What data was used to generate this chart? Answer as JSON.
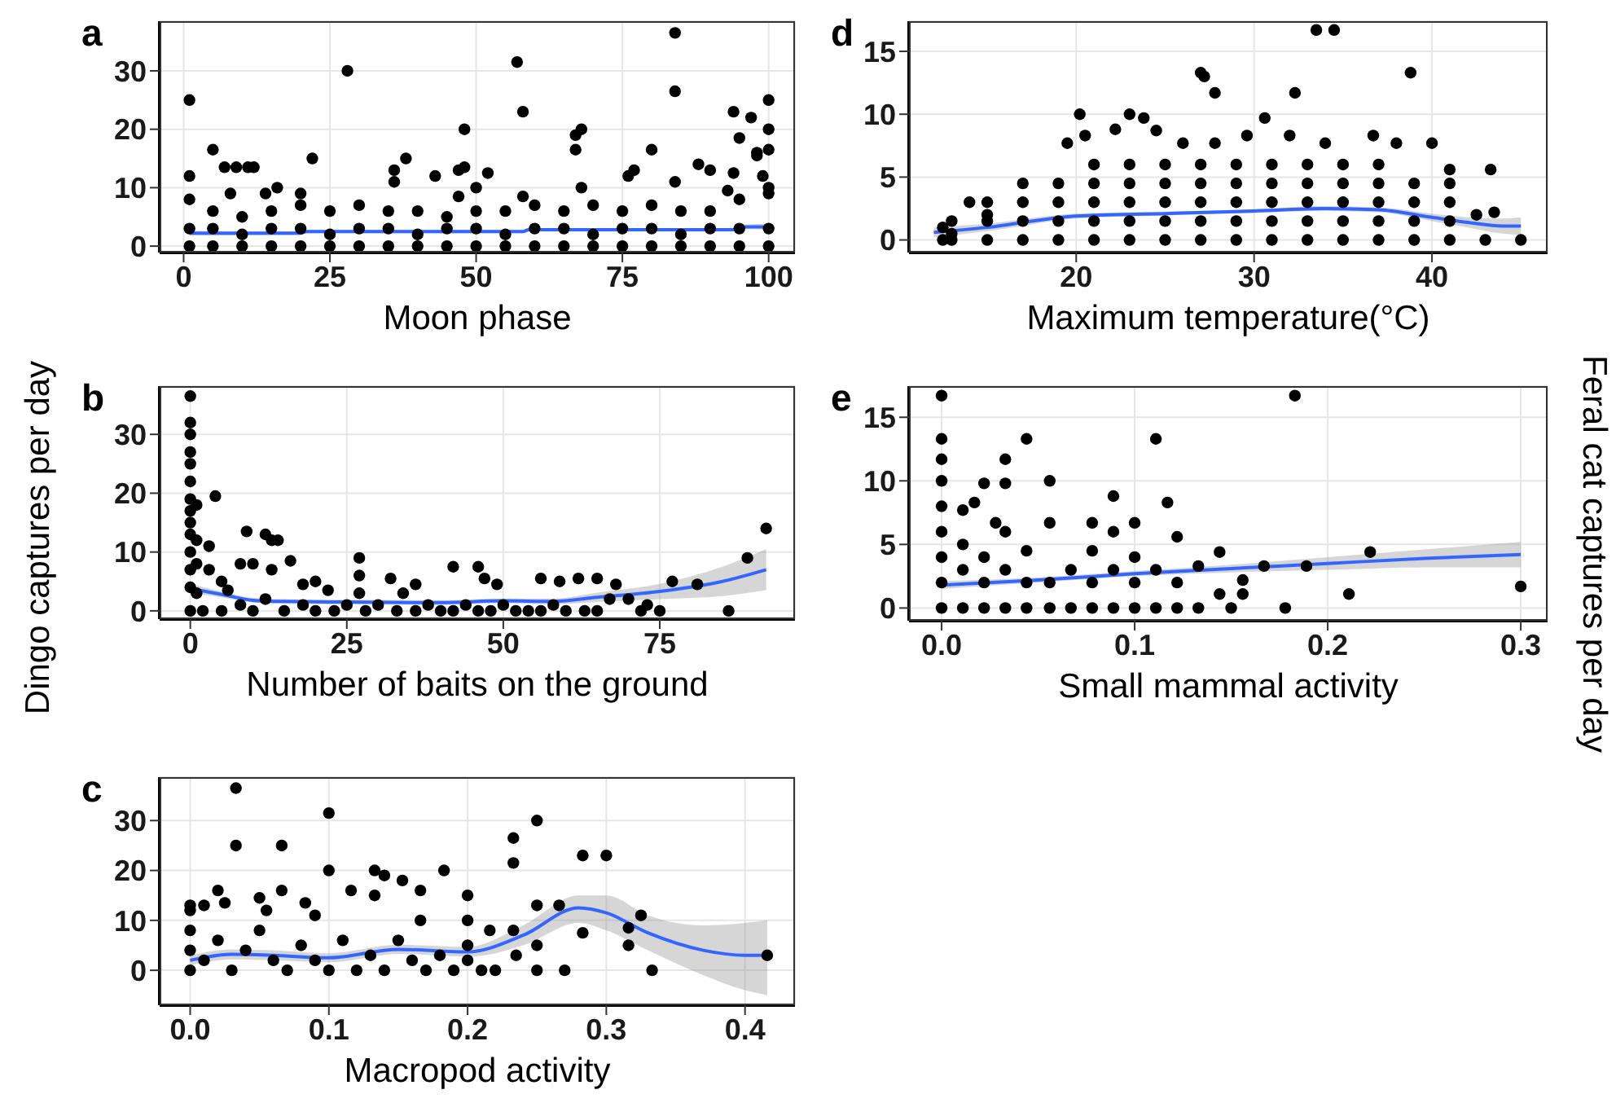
{
  "chart_data": [
    {
      "type": "scatter",
      "title": "a",
      "xlabel": "Moon phase",
      "xlim": [
        -4.1,
        104.5
      ],
      "ylim": [
        -1.1,
        38.5
      ],
      "xticks": [
        0,
        25,
        50,
        75,
        100
      ],
      "yticks": [
        0,
        10,
        20,
        30
      ],
      "grid": true,
      "series": [
        {
          "color": "#000000",
          "marker": "circle",
          "x": [
            1,
            1,
            5,
            7,
            9,
            11,
            12,
            8,
            14,
            16,
            20,
            22,
            28,
            36,
            36,
            38,
            43,
            47,
            47,
            48,
            48,
            50,
            52,
            57,
            58,
            58,
            67,
            67,
            68,
            68,
            76,
            77,
            80,
            84,
            84,
            84,
            88,
            90,
            94,
            95,
            97,
            98,
            98,
            99,
            100,
            100,
            100,
            94,
            93,
            100,
            1,
            1,
            1,
            5,
            5,
            5,
            10,
            10,
            10,
            15,
            15,
            15,
            20,
            20,
            20,
            25,
            25,
            25,
            30,
            30,
            30,
            35,
            35,
            35,
            40,
            40,
            40,
            45,
            45,
            45,
            50,
            50,
            50,
            55,
            55,
            55,
            60,
            60,
            60,
            65,
            65,
            65,
            70,
            70,
            70,
            75,
            75,
            75,
            80,
            80,
            80,
            85,
            85,
            85,
            90,
            90,
            90,
            95,
            95,
            95,
            100,
            100,
            100
          ],
          "values": [
            25,
            12,
            16.5,
            13.5,
            13.5,
            13.5,
            13.5,
            9,
            9,
            10,
            9,
            15,
            30,
            13,
            11,
            15,
            12,
            8.5,
            13,
            13.5,
            20,
            10,
            12.5,
            31.5,
            23,
            8.5,
            16.5,
            19,
            20,
            10,
            12,
            13,
            16.5,
            36.5,
            26.5,
            11,
            14,
            13,
            23,
            18.5,
            22,
            15.5,
            16,
            12,
            25,
            20,
            16.5,
            12.5,
            9.5,
            10,
            0,
            3,
            8,
            0,
            3,
            6,
            0,
            2,
            5,
            0,
            3,
            6,
            0,
            3,
            7,
            0,
            2,
            6,
            0,
            3,
            7,
            0,
            3,
            6,
            0,
            2,
            6,
            0,
            3,
            5,
            0,
            3,
            6,
            0,
            2,
            6,
            0,
            3,
            7,
            0,
            3,
            6,
            0,
            2,
            7,
            0,
            3,
            6,
            0,
            3,
            7,
            0,
            2,
            6,
            0,
            3,
            6,
            0,
            3,
            8,
            0,
            3,
            9
          ]
        },
        {
          "type": "line",
          "color": "#3366ff",
          "x": [
            1,
            20,
            21,
            58,
            59,
            95,
            96,
            100
          ],
          "values": [
            2.2,
            2.2,
            2.5,
            2.5,
            2.8,
            2.8,
            3.3,
            3.3
          ],
          "lower": [
            1.8,
            1.9,
            2.2,
            2.2,
            2.5,
            2.5,
            2.9,
            2.8
          ],
          "upper": [
            2.6,
            2.5,
            2.8,
            2.8,
            3.1,
            3.1,
            3.7,
            3.8
          ]
        }
      ]
    },
    {
      "type": "scatter",
      "title": "b",
      "xlabel": "Number of baits on the ground",
      "ylabel": "Dingo captures per day",
      "xlim": [
        -4.9,
        96.6
      ],
      "ylim": [
        -1.4,
        38.2
      ],
      "xticks": [
        0,
        25,
        50,
        75
      ],
      "yticks": [
        0,
        10,
        20,
        30
      ],
      "grid": true,
      "series": [
        {
          "color": "#000000",
          "marker": "circle",
          "x": [
            0,
            0,
            0,
            0,
            0,
            0,
            0,
            0,
            0,
            0,
            0,
            0,
            0,
            0,
            1,
            1,
            1,
            1,
            4,
            3,
            3,
            5,
            6,
            8,
            9,
            10,
            12,
            13,
            14,
            13,
            16,
            18,
            20,
            22,
            27,
            27,
            27,
            32,
            34,
            36,
            42,
            46,
            47,
            49,
            56,
            59,
            62,
            65,
            68,
            70,
            73,
            77,
            81,
            86,
            89,
            92,
            2,
            5,
            8,
            10,
            12,
            15,
            18,
            20,
            23,
            25,
            28,
            30,
            33,
            36,
            38,
            40,
            42,
            44,
            46,
            48,
            50,
            52,
            54,
            56,
            58,
            60,
            63,
            65,
            67,
            72,
            75
          ],
          "values": [
            36.5,
            32,
            30,
            27,
            25,
            22,
            19,
            17,
            15,
            13,
            10,
            7,
            4,
            0,
            18,
            12,
            8,
            3,
            19.5,
            11,
            7,
            5,
            3.5,
            8,
            13.5,
            8,
            13,
            12,
            12,
            7,
            8.5,
            4.5,
            5,
            3.5,
            9,
            6,
            3,
            5.5,
            3,
            4.5,
            7.5,
            7.5,
            5.5,
            4.5,
            5.5,
            5,
            5.5,
            5.5,
            4.5,
            2,
            1,
            5,
            4.5,
            0,
            9,
            14,
            0,
            0,
            1,
            0,
            2,
            0,
            1,
            0,
            0,
            1,
            0,
            1,
            0,
            0,
            1,
            0,
            0,
            1,
            0,
            0,
            1,
            0,
            0,
            0,
            1,
            0,
            0,
            0,
            2,
            0,
            0
          ]
        },
        {
          "type": "line",
          "color": "#3366ff",
          "x": [
            0,
            5,
            10,
            15,
            25,
            40,
            50,
            58,
            65,
            75,
            85,
            92
          ],
          "values": [
            3.8,
            2.8,
            1.8,
            1.6,
            1.5,
            1.4,
            1.7,
            1.6,
            2.3,
            3.3,
            5,
            7
          ],
          "lower": [
            3,
            2.3,
            1.4,
            1.2,
            1.1,
            1,
            1.3,
            1.1,
            1.5,
            2,
            2.5,
            3.5
          ],
          "upper": [
            4.6,
            3.3,
            2.2,
            2,
            1.9,
            1.8,
            2.1,
            2.1,
            3.1,
            4.6,
            7.5,
            10.5
          ]
        }
      ]
    },
    {
      "type": "scatter",
      "title": "c",
      "xlabel": "Macropod activity",
      "xlim": [
        -0.022,
        0.436
      ],
      "ylim": [
        -7,
        38.7
      ],
      "xticks": [
        {
          "value": 0,
          "label": "0.0"
        },
        0.1,
        0.2,
        0.3,
        0.4
      ],
      "yticks": [
        0,
        10,
        20,
        30
      ],
      "grid": true,
      "series": [
        {
          "color": "#000000",
          "marker": "circle",
          "x": [
            0.033,
            0.033,
            0.1,
            0.1,
            0.066,
            0.066,
            0.02,
            0,
            0,
            0.01,
            0.025,
            0.05,
            0.055,
            0.083,
            0.09,
            0.116,
            0.133,
            0.14,
            0.133,
            0.153,
            0.166,
            0.166,
            0.183,
            0.2,
            0.2,
            0.2,
            0.216,
            0.233,
            0.233,
            0.233,
            0.25,
            0.25,
            0.25,
            0.25,
            0.266,
            0.27,
            0.283,
            0.283,
            0.3,
            0.316,
            0.316,
            0.325,
            0.333,
            0.416,
            0,
            0,
            0,
            0.01,
            0.02,
            0.03,
            0.04,
            0.05,
            0.06,
            0.07,
            0.08,
            0.09,
            0.1,
            0.11,
            0.12,
            0.13,
            0.14,
            0.15,
            0.16,
            0.17,
            0.18,
            0.19,
            0.2,
            0.21,
            0.22,
            0.235
          ],
          "values": [
            36.5,
            25,
            31.5,
            20,
            25,
            16,
            16,
            13,
            12,
            13,
            13.5,
            14.5,
            12,
            13.5,
            11,
            16,
            20,
            19,
            15,
            18,
            16,
            10,
            20,
            15,
            10,
            5,
            8,
            26.5,
            21.5,
            8,
            30,
            13,
            5,
            0,
            13,
            0,
            23,
            7.5,
            23,
            8.5,
            5,
            11,
            0,
            3,
            0,
            4,
            8,
            2,
            6,
            0,
            4,
            8,
            2,
            0,
            5,
            2,
            0,
            6,
            0,
            3,
            0,
            6,
            2,
            0,
            3,
            0,
            2,
            0,
            0,
            3
          ]
        },
        {
          "type": "line",
          "color": "#3366ff",
          "x": [
            0,
            0.03,
            0.06,
            0.1,
            0.15,
            0.2,
            0.24,
            0.28,
            0.3,
            0.33,
            0.37,
            0.4,
            0.416
          ],
          "values": [
            2,
            3.2,
            3,
            2.5,
            4.2,
            3.7,
            7,
            12.5,
            11.5,
            7.5,
            4,
            3,
            3
          ],
          "lower": [
            1,
            2.2,
            2,
            1.6,
            3.3,
            2.7,
            5,
            9.5,
            8,
            4,
            -1,
            -4,
            -5
          ],
          "upper": [
            3,
            4.2,
            4,
            3.4,
            5.1,
            4.7,
            9,
            15,
            15,
            11,
            9,
            9.5,
            10
          ]
        }
      ]
    },
    {
      "type": "scatter",
      "title": "d",
      "xlabel": "Maximum temperature(°C)",
      "xlim": [
        10.6,
        46.5
      ],
      "ylim": [
        -1,
        17.4
      ],
      "xticks": [
        20,
        30,
        40
      ],
      "yticks": [
        0,
        5,
        10,
        15
      ],
      "grid": true,
      "series": [
        {
          "color": "#000000",
          "marker": "circle",
          "x": [
            33.5,
            34.5,
            27,
            27.2,
            38.8,
            27.8,
            32.3,
            20.2,
            23,
            23.8,
            30.6,
            24.5,
            22.2,
            19.5,
            20.5,
            26,
            27.8,
            29.6,
            32,
            34,
            36.7,
            38,
            40,
            43.3,
            41,
            12.5,
            12.5,
            14,
            15,
            45,
            42.5,
            43.5,
            43,
            13,
            13,
            13,
            15,
            15,
            15,
            17,
            17,
            17,
            17,
            19,
            19,
            19,
            19,
            21,
            21,
            21,
            21,
            21,
            23,
            23,
            23,
            23,
            23,
            25,
            25,
            25,
            25,
            25,
            27,
            27,
            27,
            27,
            27,
            29,
            29,
            29,
            29,
            29,
            31,
            31,
            31,
            31,
            31,
            33,
            33,
            33,
            33,
            33,
            35,
            35,
            35,
            35,
            35,
            37,
            37,
            37,
            37,
            37,
            39,
            39,
            39,
            39,
            41,
            41,
            41,
            41
          ],
          "values": [
            16.7,
            16.7,
            13.3,
            13,
            13.3,
            11.7,
            11.7,
            10,
            10,
            9.7,
            9.7,
            8.7,
            8.8,
            7.7,
            8.3,
            7.7,
            7.7,
            8.3,
            8.3,
            7.7,
            8.3,
            7.7,
            7.7,
            5.6,
            5.6,
            0,
            1,
            3,
            2,
            0,
            2,
            2.2,
            0,
            0,
            1.5,
            0.5,
            0,
            1.5,
            3,
            0,
            1.5,
            3,
            4.5,
            0,
            1.5,
            3,
            4.5,
            0,
            1.5,
            3,
            4.5,
            6,
            0,
            1.5,
            3,
            4.5,
            6,
            0,
            1.5,
            3,
            4.5,
            6,
            0,
            1.5,
            3,
            4.5,
            6,
            0,
            1.5,
            3,
            4.5,
            6,
            0,
            1.5,
            3,
            4.5,
            6,
            0,
            1.5,
            3,
            4.5,
            6,
            0,
            1.5,
            3,
            4.5,
            6,
            0,
            1.5,
            3,
            4.5,
            6,
            0,
            1.5,
            3,
            4.5,
            0,
            1.5,
            3,
            4.5
          ]
        },
        {
          "type": "line",
          "color": "#3366ff",
          "x": [
            12,
            15,
            20,
            25,
            30,
            34,
            37,
            40,
            42,
            44,
            45
          ],
          "values": [
            0.6,
            1,
            1.9,
            2.1,
            2.3,
            2.5,
            2.4,
            1.8,
            1.4,
            1.1,
            1.1
          ],
          "lower": [
            0.2,
            0.7,
            1.7,
            1.95,
            2.15,
            2.3,
            2.2,
            1.5,
            1,
            0.5,
            0.4
          ],
          "upper": [
            1,
            1.3,
            2.1,
            2.25,
            2.45,
            2.7,
            2.6,
            2.1,
            1.8,
            1.7,
            1.8
          ]
        }
      ]
    },
    {
      "type": "scatter",
      "title": "e",
      "xlabel": "Small mammal activity",
      "ylabel": "Feral cat captures per day",
      "xlim": [
        -0.0169,
        0.3139
      ],
      "ylim": [
        -1,
        17.45
      ],
      "xticks": [
        {
          "value": 0,
          "label": "0.0"
        },
        0.1,
        0.2,
        0.3
      ],
      "yticks": [
        0,
        5,
        10,
        15
      ],
      "grid": true,
      "series": [
        {
          "color": "#000000",
          "marker": "circle",
          "x": [
            0,
            0,
            0,
            0,
            0.183,
            0.044,
            0.111,
            0.033,
            0.022,
            0.033,
            0.056,
            0.089,
            0.117,
            0.1,
            0.011,
            0.017,
            0.028,
            0.056,
            0.078,
            0.122,
            0.144,
            0.222,
            0.167,
            0.189,
            0.133,
            0.3,
            0.211,
            0.156,
            0.156,
            0.144,
            0.133,
            0.15,
            0.178,
            0,
            0,
            0,
            0,
            0,
            0.011,
            0.011,
            0.011,
            0.022,
            0.022,
            0.022,
            0.033,
            0.033,
            0.033,
            0.044,
            0.044,
            0.044,
            0.056,
            0.056,
            0.067,
            0.067,
            0.078,
            0.078,
            0.078,
            0.089,
            0.089,
            0.089,
            0.1,
            0.1,
            0.1,
            0.111,
            0.111,
            0.122,
            0.122
          ],
          "values": [
            16.7,
            13.3,
            11.7,
            10,
            16.7,
            13.3,
            13.3,
            11.7,
            9.8,
            9.8,
            10,
            8.8,
            8.3,
            6.7,
            7.7,
            8.3,
            6.7,
            6.7,
            6.7,
            5.6,
            4.4,
            4.4,
            3.3,
            3.3,
            3.3,
            1.7,
            1.1,
            2.2,
            1.1,
            1.1,
            0,
            0,
            0,
            0,
            2,
            4,
            6,
            8,
            0,
            3,
            5,
            0,
            2,
            4,
            0,
            3,
            6,
            0,
            2,
            4.5,
            0,
            2,
            0,
            3,
            0,
            2,
            4.5,
            0,
            3,
            6,
            0,
            2,
            4,
            0,
            3,
            0,
            2
          ]
        },
        {
          "type": "line",
          "color": "#3366ff",
          "x": [
            0,
            0.05,
            0.1,
            0.15,
            0.2,
            0.25,
            0.3
          ],
          "values": [
            1.8,
            2.2,
            2.7,
            3.1,
            3.5,
            3.9,
            4.2
          ],
          "lower": [
            1.5,
            2,
            2.5,
            2.8,
            3,
            3.2,
            3.2
          ],
          "upper": [
            2.1,
            2.4,
            2.9,
            3.4,
            4,
            4.6,
            5.2
          ]
        }
      ]
    }
  ]
}
